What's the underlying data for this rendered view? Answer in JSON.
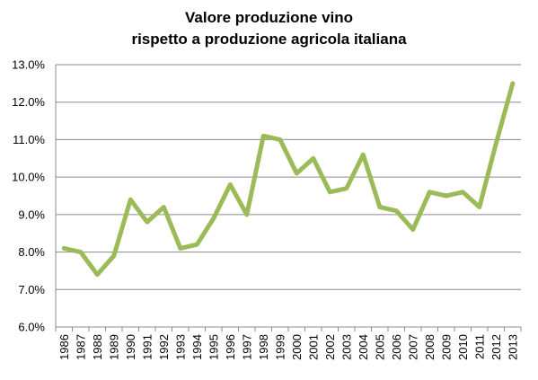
{
  "chart_data": {
    "type": "line",
    "title_lines": [
      "Valore produzione vino",
      "rispetto a produzione agricola italiana"
    ],
    "xlabel": "",
    "ylabel": "",
    "categories": [
      "1986",
      "1987",
      "1988",
      "1989",
      "1990",
      "1991",
      "1992",
      "1993",
      "1994",
      "1995",
      "1996",
      "1997",
      "1998",
      "1999",
      "2000",
      "2001",
      "2002",
      "2003",
      "2004",
      "2005",
      "2006",
      "2007",
      "2008",
      "2009",
      "2010",
      "2011",
      "2012",
      "2013"
    ],
    "series": [
      {
        "values": [
          8.1,
          8.0,
          7.4,
          7.9,
          9.4,
          8.8,
          9.2,
          8.1,
          8.2,
          8.9,
          9.8,
          9.0,
          11.1,
          11.0,
          10.1,
          10.5,
          9.6,
          9.7,
          10.6,
          9.2,
          9.1,
          8.6,
          9.6,
          9.5,
          9.6,
          9.2,
          10.9,
          12.5
        ],
        "color": "#9bbb59"
      }
    ],
    "ylim": [
      6.0,
      13.0
    ],
    "yticks": [
      "6.0%",
      "7.0%",
      "8.0%",
      "9.0%",
      "10.0%",
      "11.0%",
      "12.0%",
      "13.0%"
    ],
    "grid": true,
    "legend": "none"
  }
}
